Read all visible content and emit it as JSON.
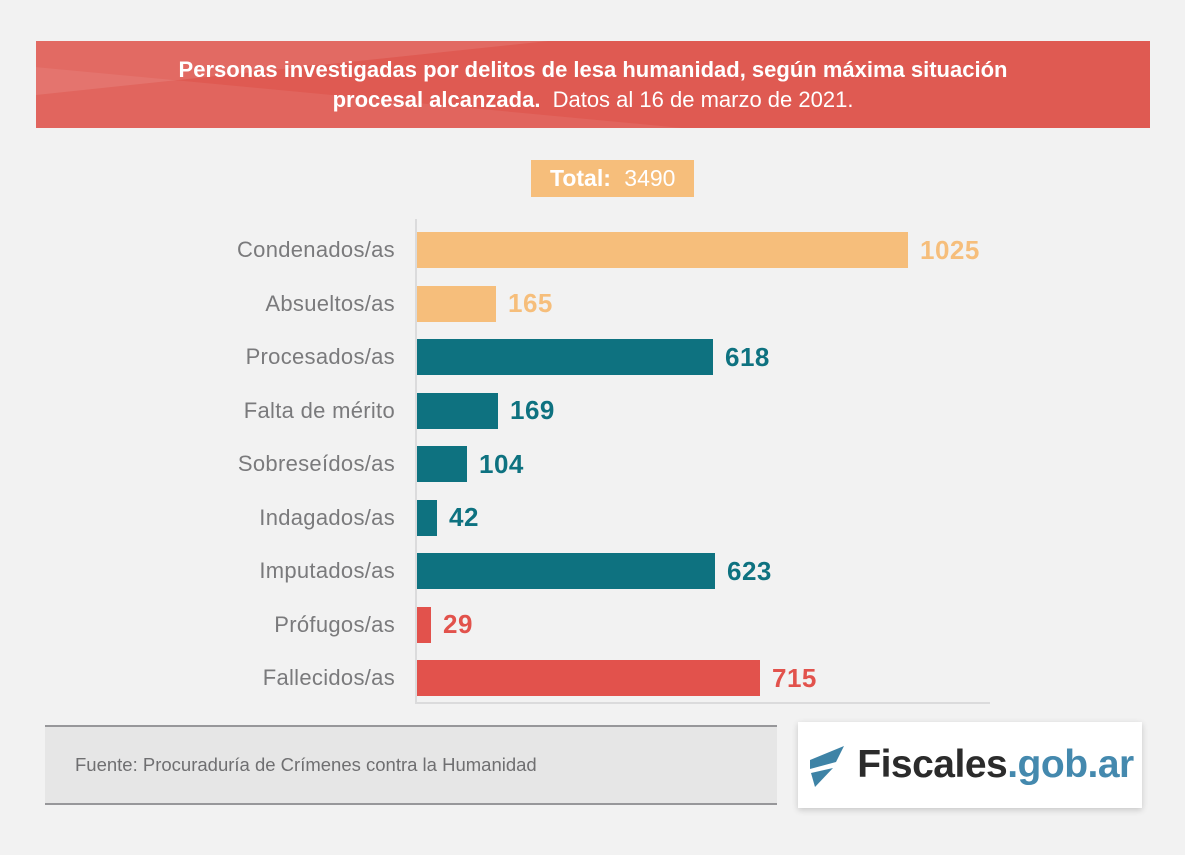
{
  "header": {
    "title_line1": "Personas investigadas por delitos de lesa humanidad, según máxima situación",
    "title_line2_bold": "procesal alcanzada.",
    "title_line2_regular": "Datos al 16 de marzo de 2021."
  },
  "total_badge": {
    "label": "Total:",
    "value": "3490"
  },
  "chart_data": {
    "type": "bar",
    "orientation": "horizontal",
    "title": "Personas investigadas por delitos de lesa humanidad, según máxima situación procesal alcanzada. Datos al 16 de marzo de 2021.",
    "total": 3490,
    "categories": [
      "Condenados/as",
      "Absueltos/as",
      "Procesados/as",
      "Falta de mérito",
      "Sobreseídos/as",
      "Indagados/as",
      "Imputados/as",
      "Prófugos/as",
      "Fallecidos/as"
    ],
    "values": [
      1025,
      165,
      618,
      169,
      104,
      42,
      623,
      29,
      715
    ],
    "bar_colors": [
      "#F6BE7B",
      "#F6BE7B",
      "#0E7280",
      "#0E7280",
      "#0E7280",
      "#0E7280",
      "#0E7280",
      "#E2524C",
      "#E2524C"
    ],
    "xlim": [
      0,
      1025
    ],
    "value_labels_shown": true,
    "grid": "off",
    "legend": "none"
  },
  "footer": {
    "source": "Fuente: Procuraduría de Crímenes contra la Humanidad",
    "logo": {
      "name": "Fiscales.gob.ar",
      "text_dark": "Fiscales",
      "text_blue": ".gob.ar",
      "icon": "fiscales-f-icon"
    }
  },
  "palette": {
    "banner_red": "#DF5A52",
    "bar_orange": "#F6BE7B",
    "bar_teal": "#0E7280",
    "bar_red": "#E2524C",
    "background": "#F2F2F2",
    "label_gray": "#7A7A7C",
    "logo_blue": "#4489AE"
  }
}
